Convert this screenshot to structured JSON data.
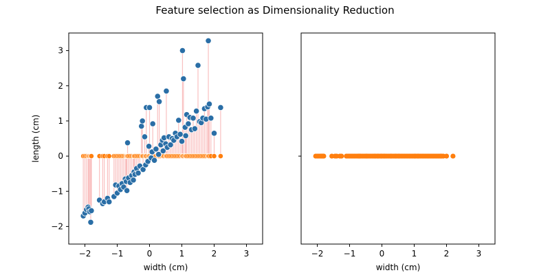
{
  "figure_title": "Feature selection as Dimensionality Reduction",
  "colors": {
    "original_points": "#2a6ea6",
    "projected_points": "#ff7f0e",
    "projection_lines": "#ef4a4a"
  },
  "chart_data": [
    {
      "type": "scatter",
      "xlabel": "width (cm)",
      "ylabel": "length (cm)",
      "xlim": [
        -2.5,
        3.5
      ],
      "ylim": [
        -2.5,
        3.5
      ],
      "xticks": [
        -2,
        -1,
        0,
        1,
        2,
        3
      ],
      "yticks": [
        -2,
        -1,
        0,
        1,
        2,
        3
      ],
      "xtick_labels": [
        "−2",
        "−1",
        "0",
        "1",
        "2",
        "3"
      ],
      "ytick_labels": [
        "−2",
        "−1",
        "0",
        "1",
        "2",
        "3"
      ],
      "grid": false,
      "projection_lines": true,
      "series": [
        {
          "points": [
            [
              -2.05,
              -1.7
            ],
            [
              -2.0,
              -1.62
            ],
            [
              -1.95,
              -1.52
            ],
            [
              -1.9,
              -1.45
            ],
            [
              -1.88,
              -1.5
            ],
            [
              -1.85,
              -1.58
            ],
            [
              -1.82,
              -1.88
            ],
            [
              -1.8,
              -1.55
            ],
            [
              -1.55,
              -1.25
            ],
            [
              -1.45,
              -1.35
            ],
            [
              -1.4,
              -1.3
            ],
            [
              -1.3,
              -1.2
            ],
            [
              -1.25,
              -1.3
            ],
            [
              -1.1,
              -1.15
            ],
            [
              -1.05,
              -0.82
            ],
            [
              -1.0,
              -1.05
            ],
            [
              -0.95,
              -0.85
            ],
            [
              -0.9,
              -0.95
            ],
            [
              -0.85,
              -0.78
            ],
            [
              -0.8,
              -0.88
            ],
            [
              -0.75,
              -0.65
            ],
            [
              -0.72,
              -0.72
            ],
            [
              -0.7,
              -0.98
            ],
            [
              -0.68,
              0.38
            ],
            [
              -0.65,
              -0.62
            ],
            [
              -0.6,
              -0.75
            ],
            [
              -0.55,
              -0.55
            ],
            [
              -0.5,
              -0.68
            ],
            [
              -0.48,
              -0.45
            ],
            [
              -0.45,
              -0.52
            ],
            [
              -0.4,
              -0.35
            ],
            [
              -0.35,
              -0.48
            ],
            [
              -0.3,
              -0.28
            ],
            [
              -0.25,
              0.85
            ],
            [
              -0.22,
              1.0
            ],
            [
              -0.2,
              -0.38
            ],
            [
              -0.15,
              0.55
            ],
            [
              -0.12,
              -0.25
            ],
            [
              -0.1,
              1.38
            ],
            [
              -0.05,
              -0.15
            ],
            [
              -0.02,
              0.28
            ],
            [
              0.0,
              1.38
            ],
            [
              0.05,
              -0.05
            ],
            [
              0.08,
              0.12
            ],
            [
              0.1,
              0.92
            ],
            [
              0.15,
              -0.12
            ],
            [
              0.2,
              0.2
            ],
            [
              0.25,
              1.7
            ],
            [
              0.28,
              0.05
            ],
            [
              0.3,
              1.55
            ],
            [
              0.35,
              0.32
            ],
            [
              0.4,
              0.45
            ],
            [
              0.42,
              0.15
            ],
            [
              0.45,
              0.52
            ],
            [
              0.5,
              0.35
            ],
            [
              0.52,
              1.85
            ],
            [
              0.55,
              0.25
            ],
            [
              0.6,
              0.55
            ],
            [
              0.65,
              0.32
            ],
            [
              0.7,
              0.5
            ],
            [
              0.75,
              0.45
            ],
            [
              0.8,
              0.65
            ],
            [
              0.85,
              0.55
            ],
            [
              0.9,
              1.02
            ],
            [
              0.95,
              0.62
            ],
            [
              1.0,
              0.42
            ],
            [
              1.02,
              3.0
            ],
            [
              1.05,
              2.2
            ],
            [
              1.1,
              0.82
            ],
            [
              1.12,
              0.58
            ],
            [
              1.15,
              1.18
            ],
            [
              1.2,
              0.92
            ],
            [
              1.25,
              1.1
            ],
            [
              1.3,
              0.75
            ],
            [
              1.35,
              1.08
            ],
            [
              1.4,
              0.78
            ],
            [
              1.45,
              1.28
            ],
            [
              1.5,
              2.58
            ],
            [
              1.55,
              0.98
            ],
            [
              1.6,
              0.95
            ],
            [
              1.65,
              1.08
            ],
            [
              1.7,
              1.35
            ],
            [
              1.75,
              1.05
            ],
            [
              1.8,
              1.4
            ],
            [
              1.82,
              3.28
            ],
            [
              1.85,
              1.48
            ],
            [
              1.9,
              1.08
            ],
            [
              2.0,
              0.65
            ],
            [
              2.2,
              1.38
            ]
          ]
        }
      ]
    },
    {
      "type": "scatter",
      "xlabel": "width (cm)",
      "ylabel": "",
      "xlim": [
        -2.5,
        3.5
      ],
      "ylim": [
        -2.5,
        3.5
      ],
      "xticks": [
        -2,
        -1,
        0,
        1,
        2,
        3
      ],
      "yticks": [],
      "xtick_labels": [
        "−2",
        "−1",
        "0",
        "1",
        "2",
        "3"
      ],
      "ytick_labels": [],
      "grid": false,
      "projection_lines": false,
      "series": []
    }
  ]
}
